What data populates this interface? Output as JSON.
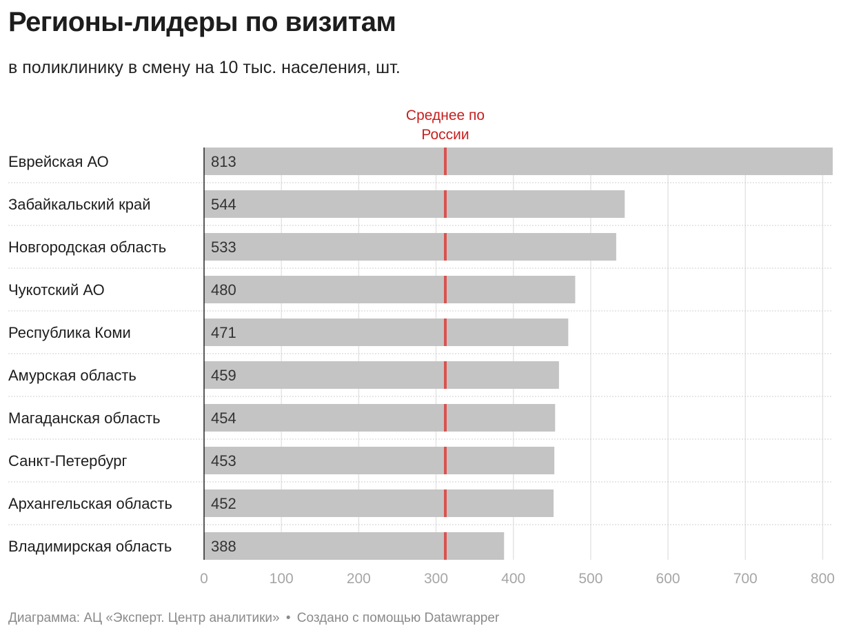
{
  "title": "Регионы-лидеры по визитам",
  "subtitle": "в поликлинику в смену на 10 тыс. населения, шт.",
  "footer": {
    "source": "Диаграмма: АЦ «Эксперт. Центр аналитики»",
    "separator": "•",
    "credit": "Создано с помощью Datawrapper"
  },
  "chart_data": {
    "type": "bar",
    "orientation": "horizontal",
    "categories": [
      "Еврейская АО",
      "Забайкальский край",
      "Новгородская область",
      "Чукотский АО",
      "Республика Коми",
      "Амурская область",
      "Магаданская область",
      "Санкт-Петербург",
      "Архангельская область",
      "Владимирская область"
    ],
    "values": [
      813,
      544,
      533,
      480,
      471,
      459,
      454,
      453,
      452,
      388
    ],
    "reference_line": {
      "label_line1": "Среднее по",
      "label_line2": "России",
      "value": 312
    },
    "xlim": [
      0,
      813
    ],
    "xticks": [
      0,
      100,
      200,
      300,
      400,
      500,
      600,
      700,
      800
    ],
    "grid": true,
    "colors": {
      "bar": "#c4c4c4",
      "reference": "#d9534f",
      "reference_label": "#c71e1d",
      "grid": "#e4e4e4",
      "tick": "#a6a6a6"
    }
  }
}
